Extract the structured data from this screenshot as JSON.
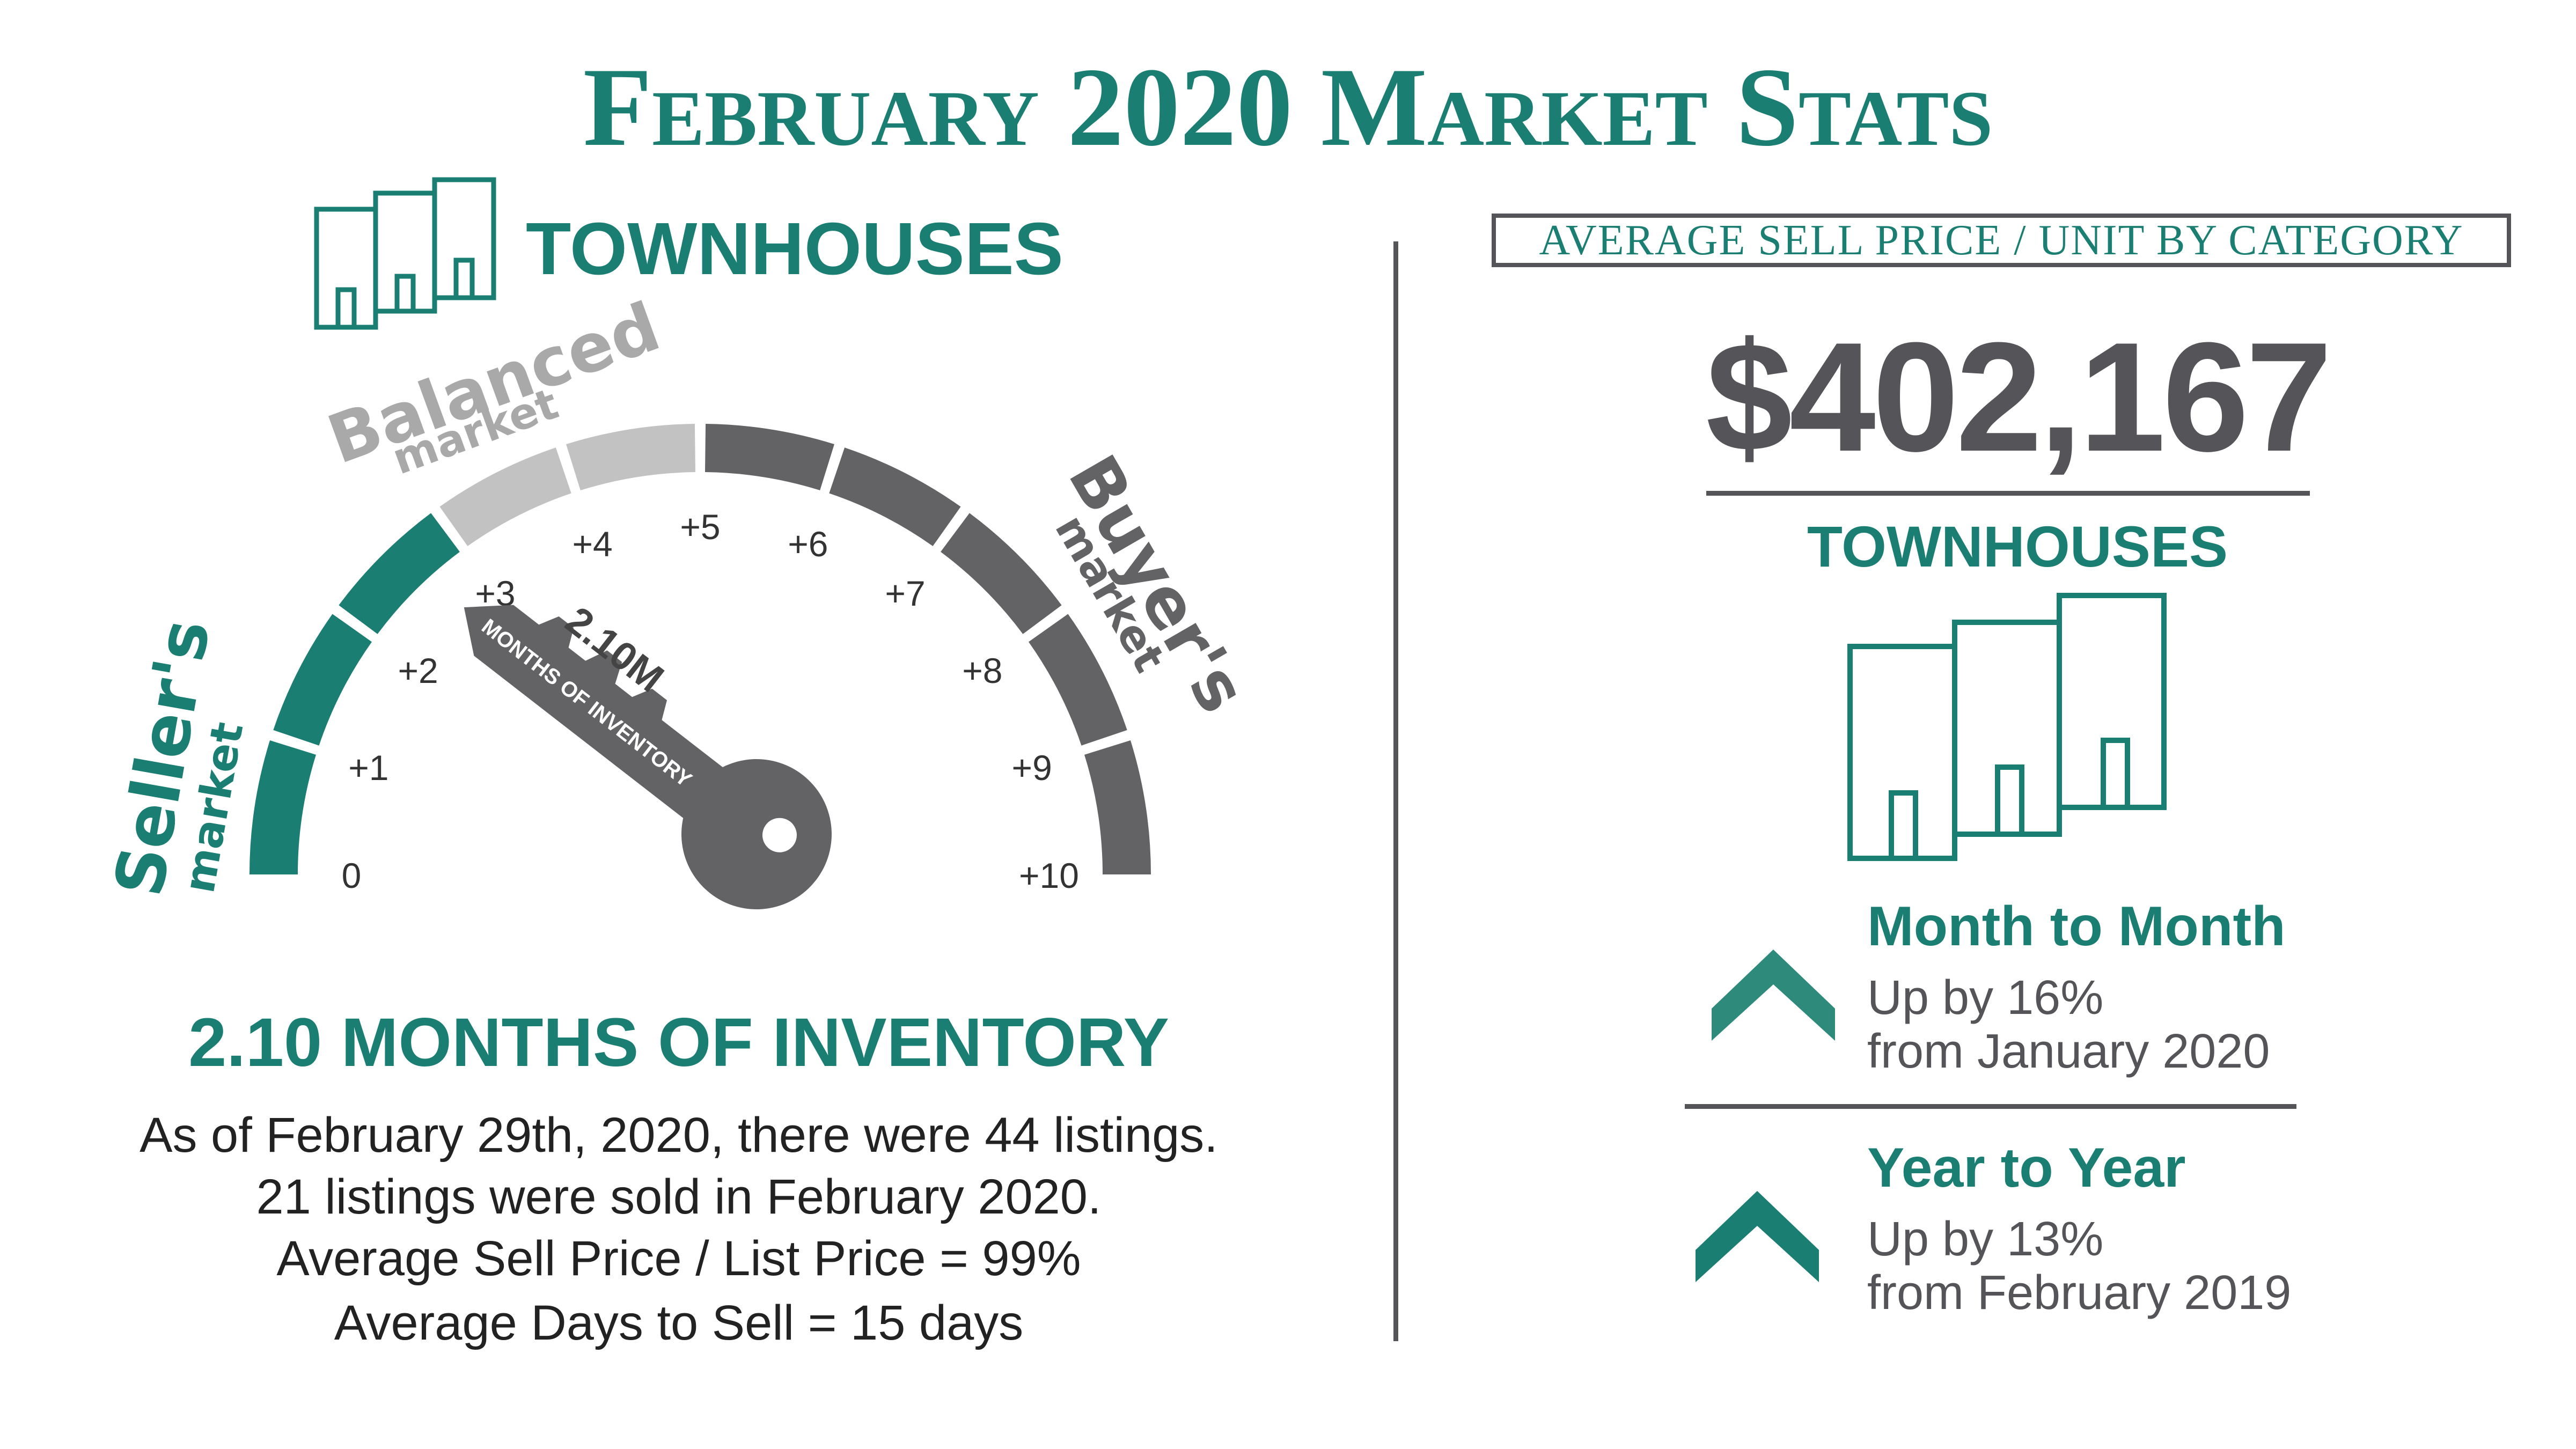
{
  "title": "February 2020 Market Stats",
  "left": {
    "category_label": "TOWNHOUSES",
    "gauge": {
      "zone_labels": {
        "sellers": "Seller's",
        "sellers_sub": "market",
        "balanced": "Balanced",
        "balanced_sub": "market",
        "buyers": "Buyer's",
        "buyers_sub": "market"
      },
      "ticks": [
        "0",
        "+1",
        "+2",
        "+3",
        "+4",
        "+5",
        "+6",
        "+7",
        "+8",
        "+9",
        "+10"
      ],
      "value": 2.1,
      "key_value_label": "2.10M",
      "key_sub_label": "MONTHS OF INVENTORY",
      "colors": {
        "sellers": "#1a7f72",
        "balanced": "#c2c2c2",
        "buyers": "#636366"
      }
    },
    "inventory_heading": "2.10 MONTHS OF INVENTORY",
    "inventory_lines": [
      "As of February 29th, 2020, there were 44 listings.",
      "21 listings were sold in February 2020.",
      "Average Sell Price / List Price = 99%",
      "Average Days to Sell = 15 days"
    ]
  },
  "right": {
    "box_label": "AVERAGE SELL PRICE / UNIT BY CATEGORY",
    "price": "$402,167",
    "category_label": "TOWNHOUSES",
    "month_to_month": {
      "title": "Month to Month",
      "line1": "Up by 16%",
      "line2": "from January 2020",
      "icon": "chevron-up-icon",
      "color": "#2e8b7b"
    },
    "year_to_year": {
      "title": "Year to Year",
      "line1": "Up by 13%",
      "line2": "from February 2019",
      "icon": "chevron-up-icon",
      "color": "#1a7f72"
    }
  }
}
